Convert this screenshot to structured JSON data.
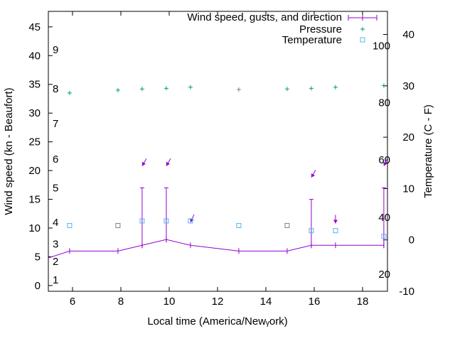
{
  "chart_data": {
    "type": "line",
    "xlabel": "Local time (America/Newᵧork)",
    "ylabel": "Wind speed (kn - Beaufort)",
    "y2label": "Temperature (C - F)",
    "xlim": [
      5,
      19.03
    ],
    "ylim": [
      -1,
      47.7
    ],
    "y2lim": [
      -10,
      44.5
    ],
    "xticks": [
      6,
      8,
      10,
      12,
      14,
      16,
      18
    ],
    "yticks": [
      0,
      5,
      10,
      15,
      20,
      25,
      30,
      35,
      40,
      45
    ],
    "y2ticks": [
      -10,
      0,
      10,
      20,
      30,
      40
    ],
    "beaufort_labels": [
      {
        "label": "1",
        "y": 1
      },
      {
        "label": "2",
        "y": 4.2
      },
      {
        "label": "3",
        "y": 7.2
      },
      {
        "label": "4",
        "y": 11
      },
      {
        "label": "5",
        "y": 17
      },
      {
        "label": "6",
        "y": 22
      },
      {
        "label": "7",
        "y": 28.2
      },
      {
        "label": "8",
        "y": 34.2
      },
      {
        "label": "9",
        "y": 41
      }
    ],
    "fahrenheit_labels": [
      {
        "label": "20",
        "c": -6.7
      },
      {
        "label": "40",
        "c": 4.4
      },
      {
        "label": "60",
        "c": 15.6
      },
      {
        "label": "80",
        "c": 26.7
      },
      {
        "label": "100",
        "c": 37.8
      }
    ],
    "legend": [
      "Wind speed, gusts, and direction",
      "Pressure",
      "Temperature"
    ],
    "legend_position": "top-right",
    "colors": {
      "wind": "#9400d3",
      "pressure": "#009e73",
      "temperature": "#56b4e9",
      "stale": "#808080"
    },
    "wind_start": {
      "x": 5,
      "y": 4.8
    },
    "series": [
      {
        "name": "Wind speed",
        "x": [
          5.88,
          7.88,
          8.88,
          9.88,
          10.88,
          12.88,
          14.88,
          15.88,
          16.88,
          18.88
        ],
        "values": [
          6,
          6,
          7,
          8,
          7,
          6,
          6,
          7,
          7,
          7
        ]
      },
      {
        "name": "Gusts",
        "x": [
          8.88,
          9.88,
          15.88,
          18.88
        ],
        "values": [
          17,
          17,
          15,
          17
        ]
      },
      {
        "name": "Direction",
        "x": [
          8.88,
          9.88,
          10.88,
          15.88,
          16.88,
          18.88
        ],
        "y": [
          20.8,
          20.8,
          11,
          18.8,
          10.8,
          20.8
        ],
        "degrees": [
          30,
          30,
          25,
          30,
          0,
          25
        ]
      },
      {
        "name": "Pressure",
        "x": [
          5.88,
          7.88,
          8.88,
          9.88,
          10.88,
          12.88,
          14.88,
          15.88,
          16.88,
          18.88
        ],
        "values": [
          33.5,
          34,
          34.2,
          34.3,
          34.5,
          34.1,
          34.2,
          34.3,
          34.5,
          34.8
        ],
        "stale": [
          false,
          false,
          false,
          false,
          false,
          true,
          false,
          false,
          false,
          false
        ]
      },
      {
        "name": "Temperature",
        "x": [
          5.88,
          7.88,
          8.88,
          9.88,
          10.88,
          12.88,
          14.88,
          15.88,
          16.88,
          18.88
        ],
        "values": [
          2.8,
          2.8,
          3.7,
          3.7,
          3.7,
          2.8,
          2.8,
          1.8,
          1.8,
          0.7
        ],
        "stale": [
          false,
          true,
          false,
          false,
          false,
          false,
          true,
          false,
          false,
          false
        ]
      }
    ]
  }
}
